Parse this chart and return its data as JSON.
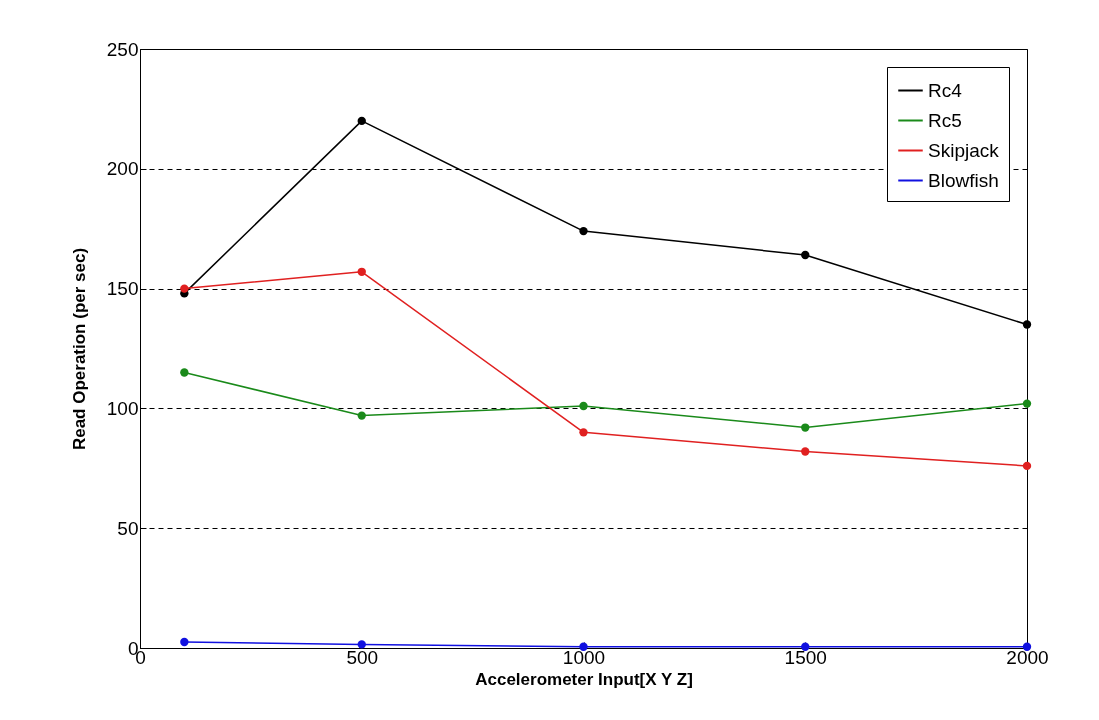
{
  "chart_data": {
    "type": "line",
    "xlabel": "Accelerometer Input[X Y Z]",
    "ylabel": "Read Operation (per sec)",
    "x": [
      100,
      500,
      1000,
      1500,
      2000
    ],
    "series": [
      {
        "name": "Rc4",
        "color": "#000000",
        "values": [
          148,
          220,
          174,
          164,
          135
        ]
      },
      {
        "name": "Rc5",
        "color": "#1a8a1a",
        "values": [
          115,
          97,
          101,
          92,
          102
        ]
      },
      {
        "name": "Skipjack",
        "color": "#e02020",
        "values": [
          150,
          157,
          90,
          82,
          76
        ]
      },
      {
        "name": "Blowfish",
        "color": "#1010e0",
        "values": [
          2.5,
          1.5,
          0.5,
          0.5,
          0.5
        ]
      }
    ],
    "xlim": [
      0,
      2000
    ],
    "xticks": [
      0,
      500,
      1000,
      1500,
      2000
    ],
    "ylim": [
      0,
      250
    ],
    "yticks": [
      0,
      50,
      100,
      150,
      200,
      250
    ],
    "grid": "y",
    "legend": "top right",
    "marker": "circle",
    "line_style": "solid"
  }
}
